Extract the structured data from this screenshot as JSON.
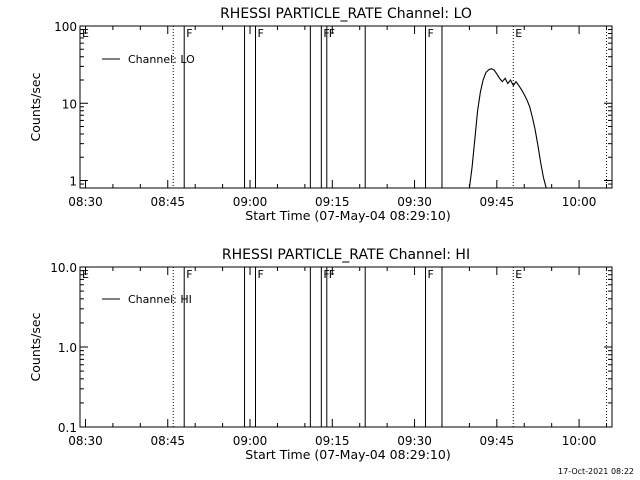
{
  "footer_stamp": "17-Oct-2021 08:22",
  "colors": {
    "background": "#ffffff",
    "ink": "#000000"
  },
  "chart_data": [
    {
      "type": "line",
      "title": "RHESSI PARTICLE_RATE Channel: LO",
      "xlabel": "Start Time (07-May-04 08:29:10)",
      "ylabel": "Counts/sec",
      "y_scale": "log",
      "ylim": [
        0.8,
        100
      ],
      "xlim": [
        "08:29",
        "10:06"
      ],
      "x_ticks": [
        "08:30",
        "08:45",
        "09:00",
        "09:15",
        "09:30",
        "09:45",
        "10:00"
      ],
      "y_ticks": [
        "1",
        "10",
        "100"
      ],
      "legend": {
        "position": "top-left",
        "entries": [
          "Channel: LO"
        ]
      },
      "grid": false,
      "series": [
        {
          "name": "Channel: LO",
          "x": [
            "09:40:00",
            "09:40:30",
            "09:41:00",
            "09:41:30",
            "09:42:00",
            "09:42:30",
            "09:43:00",
            "09:43:30",
            "09:44:00",
            "09:44:30",
            "09:45:00",
            "09:45:30",
            "09:46:00",
            "09:46:30",
            "09:47:00",
            "09:47:30",
            "09:48:00",
            "09:48:30",
            "09:49:00",
            "09:49:30",
            "09:50:00",
            "09:50:30",
            "09:51:00",
            "09:51:30",
            "09:52:00",
            "09:52:30",
            "09:53:00",
            "09:53:30",
            "09:54:00"
          ],
          "values": [
            0.8,
            1.5,
            3.5,
            8,
            14,
            20,
            25,
            27,
            28,
            27,
            24,
            21,
            19,
            21,
            18,
            20,
            17,
            19,
            17,
            15,
            13,
            11,
            9,
            6.5,
            4.5,
            2.8,
            1.7,
            1.1,
            0.8
          ]
        }
      ],
      "vertical_markers": [
        {
          "time": "08:48",
          "style": "solid",
          "label": "F"
        },
        {
          "time": "08:59",
          "style": "solid",
          "label": ""
        },
        {
          "time": "09:01",
          "style": "solid",
          "label": "F"
        },
        {
          "time": "09:11",
          "style": "solid",
          "label": ""
        },
        {
          "time": "09:13",
          "style": "solid",
          "label": "F"
        },
        {
          "time": "09:14",
          "style": "solid",
          "label": "F"
        },
        {
          "time": "09:21",
          "style": "solid",
          "label": ""
        },
        {
          "time": "09:32",
          "style": "solid",
          "label": "F"
        },
        {
          "time": "09:35",
          "style": "solid",
          "label": ""
        },
        {
          "time": "08:46",
          "style": "dotted",
          "label": ""
        },
        {
          "time": "09:48",
          "style": "dotted",
          "label": "E"
        },
        {
          "time": "10:05",
          "style": "dotted",
          "label": ""
        },
        {
          "time": "08:29",
          "style": "dotted",
          "label": "E"
        }
      ]
    },
    {
      "type": "line",
      "title": "RHESSI PARTICLE_RATE Channel: HI",
      "xlabel": "Start Time (07-May-04 08:29:10)",
      "ylabel": "Counts/sec",
      "y_scale": "log",
      "ylim": [
        0.1,
        10.0
      ],
      "xlim": [
        "08:29",
        "10:06"
      ],
      "x_ticks": [
        "08:30",
        "08:45",
        "09:00",
        "09:15",
        "09:30",
        "09:45",
        "10:00"
      ],
      "y_ticks": [
        "0.1",
        "1.0",
        "10.0"
      ],
      "legend": {
        "position": "top-left",
        "entries": [
          "Channel: HI"
        ]
      },
      "grid": false,
      "series": [
        {
          "name": "Channel: HI",
          "x": [],
          "values": []
        }
      ],
      "vertical_markers": [
        {
          "time": "08:48",
          "style": "solid",
          "label": "F"
        },
        {
          "time": "08:59",
          "style": "solid",
          "label": ""
        },
        {
          "time": "09:01",
          "style": "solid",
          "label": "F"
        },
        {
          "time": "09:11",
          "style": "solid",
          "label": ""
        },
        {
          "time": "09:13",
          "style": "solid",
          "label": "F"
        },
        {
          "time": "09:14",
          "style": "solid",
          "label": "F"
        },
        {
          "time": "09:21",
          "style": "solid",
          "label": ""
        },
        {
          "time": "09:32",
          "style": "solid",
          "label": "F"
        },
        {
          "time": "09:35",
          "style": "solid",
          "label": ""
        },
        {
          "time": "08:46",
          "style": "dotted",
          "label": ""
        },
        {
          "time": "09:48",
          "style": "dotted",
          "label": "E"
        },
        {
          "time": "10:05",
          "style": "dotted",
          "label": ""
        },
        {
          "time": "08:29",
          "style": "dotted",
          "label": "E"
        }
      ]
    }
  ]
}
